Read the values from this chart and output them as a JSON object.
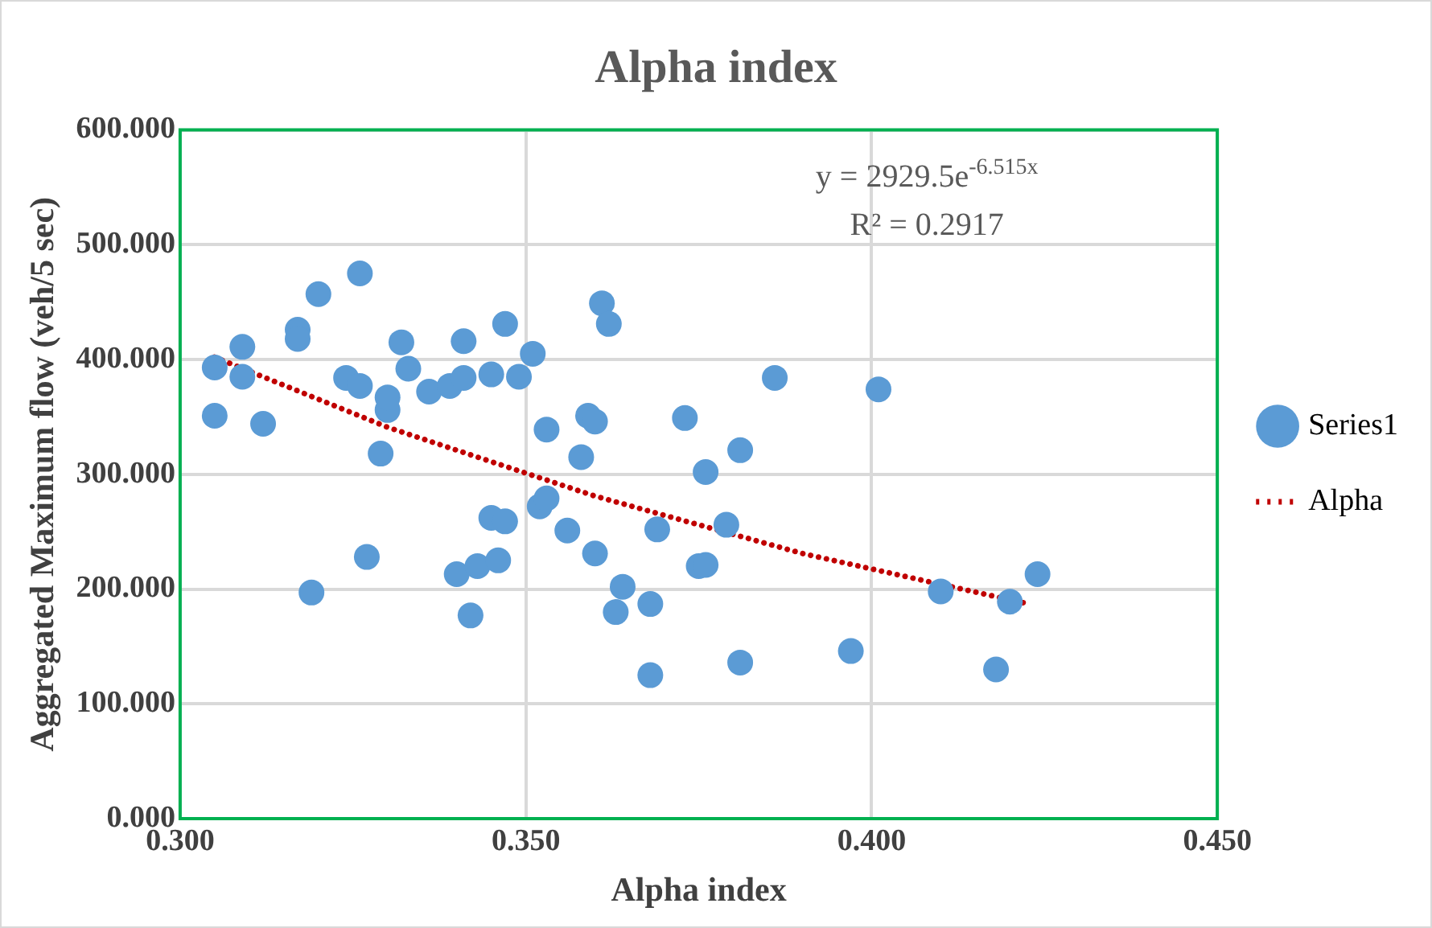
{
  "chart_data": {
    "type": "scatter",
    "title": "Alpha index",
    "xlabel": "Alpha index",
    "ylabel": "Aggregated Maximum flow (veh/5 sec)",
    "xlim": [
      0.3,
      0.45
    ],
    "xticks": [
      {
        "value": 0.3,
        "label": "0.300"
      },
      {
        "value": 0.35,
        "label": "0.350"
      },
      {
        "value": 0.4,
        "label": "0.400"
      },
      {
        "value": 0.45,
        "label": "0.450"
      }
    ],
    "ylim": [
      0,
      600
    ],
    "yticks": [
      {
        "value": 0,
        "label": "0.000"
      },
      {
        "value": 100,
        "label": "100.000"
      },
      {
        "value": 200,
        "label": "200.000"
      },
      {
        "value": 300,
        "label": "300.000"
      },
      {
        "value": 400,
        "label": "400.000"
      },
      {
        "value": 500,
        "label": "500.000"
      },
      {
        "value": 600,
        "label": "600.000"
      }
    ],
    "grid": true,
    "legend": "right",
    "marker": "circle",
    "annotations": [
      "y = 2929.5e$^{-6.515x}$",
      "R² = 0.2917"
    ],
    "series": [
      {
        "name": "Series1",
        "color": "#5b9bd5",
        "x": [
          0.305,
          0.305,
          0.309,
          0.309,
          0.312,
          0.317,
          0.317,
          0.32,
          0.319,
          0.326,
          0.324,
          0.326,
          0.327,
          0.329,
          0.33,
          0.33,
          0.332,
          0.333,
          0.336,
          0.339,
          0.341,
          0.341,
          0.345,
          0.349,
          0.347,
          0.351,
          0.345,
          0.347,
          0.34,
          0.343,
          0.346,
          0.342,
          0.361,
          0.362,
          0.353,
          0.359,
          0.36,
          0.358,
          0.373,
          0.386,
          0.381,
          0.376,
          0.352,
          0.353,
          0.356,
          0.36,
          0.369,
          0.379,
          0.375,
          0.376,
          0.364,
          0.363,
          0.368,
          0.368,
          0.381,
          0.397,
          0.401,
          0.41,
          0.42,
          0.424,
          0.418
        ],
        "values": [
          393,
          351,
          411,
          385,
          344,
          426,
          418,
          457,
          197,
          475,
          384,
          377,
          228,
          318,
          356,
          367,
          415,
          392,
          372,
          377,
          384,
          416,
          387,
          385,
          431,
          405,
          262,
          259,
          213,
          220,
          225,
          177,
          449,
          431,
          339,
          351,
          346,
          315,
          349,
          384,
          321,
          302,
          272,
          279,
          251,
          231,
          252,
          256,
          220,
          221,
          202,
          180,
          187,
          125,
          136,
          146,
          374,
          198,
          189,
          213,
          130
        ]
      },
      {
        "name": "Alpha",
        "type": "line",
        "color": "#c00000",
        "line_style": "dotted",
        "marker": "none",
        "x": [
          0.305,
          0.33,
          0.36,
          0.39,
          0.422
        ],
        "values": [
          402,
          341,
          281,
          231,
          188
        ]
      }
    ]
  }
}
